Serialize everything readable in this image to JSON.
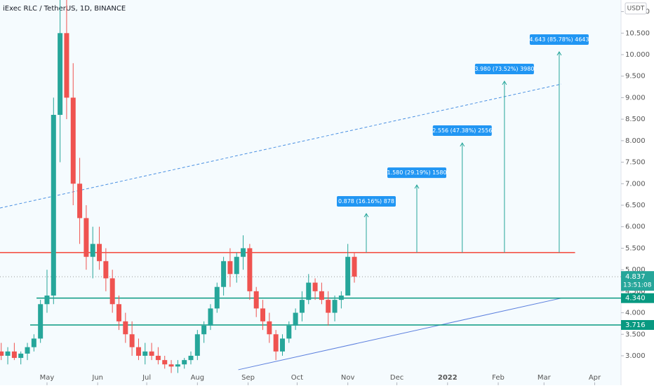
{
  "chart_data": {
    "type": "candlestick",
    "title": "iExec RLC / TetherUS, 1D, BINANCE",
    "currency": "USDT",
    "xlim": [
      -28.75,
      351.1
    ],
    "ylim": [
      2.316,
      11.27
    ],
    "xticks": [
      {
        "value": 0,
        "label": "May"
      },
      {
        "value": 31,
        "label": "Jun"
      },
      {
        "value": 61,
        "label": "Jul"
      },
      {
        "value": 92,
        "label": "Aug"
      },
      {
        "value": 123,
        "label": "Sep"
      },
      {
        "value": 153,
        "label": "Oct"
      },
      {
        "value": 184,
        "label": "Nov"
      },
      {
        "value": 214,
        "label": "Dec"
      },
      {
        "value": 245,
        "label": "2022"
      },
      {
        "value": 276,
        "label": "Feb"
      },
      {
        "value": 304,
        "label": "Mar"
      },
      {
        "value": 335,
        "label": "Apr"
      }
    ],
    "yticks": [
      {
        "value": 3,
        "label": "3.000"
      },
      {
        "value": 3.5,
        "label": "3.500"
      },
      {
        "value": 4,
        "label": "4.000"
      },
      {
        "value": 4.5,
        "label": "4.500"
      },
      {
        "value": 5,
        "label": "5.000"
      },
      {
        "value": 5.5,
        "label": "5.500"
      },
      {
        "value": 6,
        "label": "6.000"
      },
      {
        "value": 6.5,
        "label": "6.500"
      },
      {
        "value": 7,
        "label": "7.000"
      },
      {
        "value": 7.5,
        "label": "7.500"
      },
      {
        "value": 8,
        "label": "8.000"
      },
      {
        "value": 8.5,
        "label": "8.500"
      },
      {
        "value": 9,
        "label": "9.000"
      },
      {
        "value": 9.5,
        "label": "9.500"
      },
      {
        "value": 10,
        "label": "10.000"
      },
      {
        "value": 10.5,
        "label": "10.500"
      },
      {
        "value": 11,
        "label": "11.000"
      }
    ],
    "up_color": "#26a69a",
    "down_color": "#ef5350",
    "candles": {
      "x": [
        -28,
        -24,
        -20,
        -16,
        -12,
        -8,
        -4,
        0,
        4,
        8,
        12,
        16,
        20,
        24,
        28,
        32,
        36,
        40,
        44,
        48,
        52,
        56,
        60,
        64,
        68,
        72,
        76,
        80,
        84,
        88,
        92,
        96,
        100,
        104,
        108,
        112,
        116,
        120,
        124,
        128,
        132,
        136,
        140,
        144,
        148,
        152,
        156,
        160,
        164,
        168,
        172,
        176,
        180,
        184,
        188
      ],
      "open": [
        3.1,
        3.0,
        3.1,
        2.95,
        3.05,
        3.2,
        3.4,
        4.2,
        4.4,
        8.6,
        10.5,
        9.0,
        7.0,
        6.2,
        5.3,
        5.6,
        5.2,
        4.8,
        4.2,
        3.8,
        3.5,
        3.2,
        3.0,
        3.1,
        3.0,
        2.9,
        2.8,
        2.75,
        2.8,
        2.9,
        3.0,
        3.5,
        3.7,
        4.1,
        4.6,
        5.2,
        4.9,
        5.3,
        5.5,
        4.5,
        4.1,
        3.8,
        3.5,
        3.1,
        3.4,
        3.7,
        4.0,
        4.3,
        4.7,
        4.5,
        4.3,
        4.0,
        4.3,
        4.4,
        5.3
      ],
      "high": [
        3.3,
        3.2,
        3.3,
        3.1,
        3.3,
        3.5,
        4.3,
        5.0,
        9.0,
        11.3,
        11.3,
        9.8,
        7.6,
        6.5,
        6.0,
        6.0,
        5.5,
        5.0,
        4.4,
        4.0,
        3.8,
        3.4,
        3.3,
        3.3,
        3.2,
        3.0,
        2.9,
        2.9,
        2.95,
        3.1,
        3.6,
        3.8,
        4.2,
        4.7,
        5.3,
        5.5,
        5.4,
        5.8,
        5.6,
        4.6,
        4.3,
        4.0,
        3.6,
        3.5,
        3.8,
        4.1,
        4.5,
        4.9,
        4.8,
        4.7,
        4.5,
        4.4,
        4.5,
        5.6,
        5.4
      ],
      "low": [
        2.9,
        2.8,
        2.9,
        2.8,
        2.9,
        3.1,
        3.3,
        4.0,
        4.2,
        7.5,
        8.5,
        6.5,
        5.6,
        5.0,
        4.8,
        5.0,
        4.5,
        4.0,
        3.6,
        3.3,
        3.0,
        2.9,
        2.8,
        2.9,
        2.8,
        2.7,
        2.6,
        2.6,
        2.7,
        2.8,
        2.9,
        3.3,
        3.6,
        4.0,
        4.4,
        4.6,
        4.7,
        5.0,
        4.3,
        3.9,
        3.6,
        3.3,
        2.9,
        3.0,
        3.3,
        3.6,
        3.8,
        4.2,
        4.3,
        4.2,
        3.7,
        3.8,
        4.1,
        4.4,
        4.7
      ],
      "close": [
        3.0,
        3.1,
        2.95,
        3.05,
        3.2,
        3.4,
        4.2,
        4.4,
        8.6,
        10.5,
        9.0,
        7.0,
        6.2,
        5.3,
        5.6,
        5.2,
        4.8,
        4.2,
        3.8,
        3.5,
        3.2,
        3.0,
        3.1,
        3.0,
        2.9,
        2.8,
        2.75,
        2.8,
        2.9,
        3.0,
        3.5,
        3.7,
        4.1,
        4.6,
        5.2,
        4.9,
        5.3,
        5.5,
        4.5,
        4.1,
        3.8,
        3.5,
        3.1,
        3.4,
        3.7,
        4.0,
        4.3,
        4.7,
        4.5,
        4.3,
        4.0,
        4.3,
        4.4,
        5.3,
        4.84
      ]
    },
    "levels": [
      {
        "value": 5.4,
        "x": [
          -28.75,
          323
        ],
        "color": "#f44336"
      },
      {
        "value": 4.34,
        "label": "4.340",
        "x": [
          -6.4,
          351.1
        ],
        "color": "#089981"
      },
      {
        "value": 3.716,
        "label": "3.716",
        "x": [
          -10.3,
          351.1
        ],
        "color": "#089981"
      }
    ],
    "last_price": {
      "value": 4.837,
      "label": "4.837",
      "countdown": "13:51:08",
      "color": "#26a69a"
    },
    "trendlines": [
      {
        "x": [
          117,
          314.6
        ],
        "y": [
          2.675,
          4.34
        ],
        "color": "#5b7fde",
        "dashed": false
      },
      {
        "x": [
          -28.75,
          314.6
        ],
        "y": [
          6.435,
          9.316
        ],
        "color": "#4a90e2",
        "dashed": true
      }
    ],
    "targets": [
      {
        "label": "0.878 (16.16%) 878",
        "x": 195.3,
        "from": 5.4,
        "to": 6.305
      },
      {
        "label": "1.580 (29.19%) 1580",
        "x": 226.2,
        "from": 5.4,
        "to": 6.97
      },
      {
        "label": "2.556 (47.38%) 2556",
        "x": 254,
        "from": 5.4,
        "to": 7.948
      },
      {
        "label": "3.980 (73.52%) 3980",
        "x": 279.8,
        "from": 5.4,
        "to": 9.381
      },
      {
        "label": "4.643 (85.78%) 4643",
        "x": 313.3,
        "from": 5.4,
        "to": 10.065
      }
    ],
    "target_color": "#26a69a",
    "label_color": "#2196f3"
  }
}
